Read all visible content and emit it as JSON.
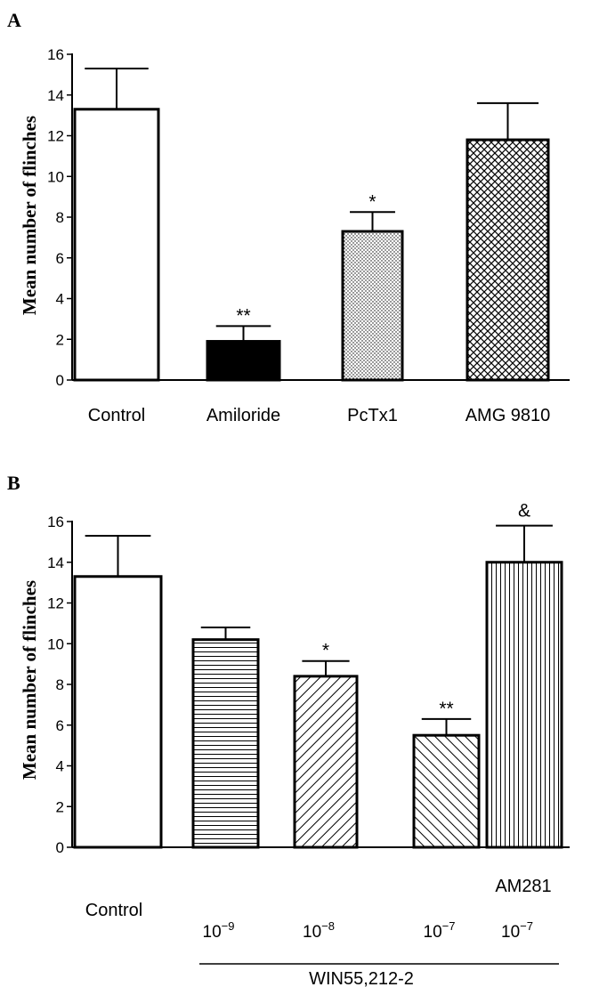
{
  "chart_data": [
    {
      "type": "bar",
      "panel": "A",
      "ylabel": "Mean number of flinches",
      "ylim": [
        0,
        16
      ],
      "yticks": [
        "0",
        "2",
        "4",
        "6",
        "8",
        "10",
        "12",
        "14",
        "16"
      ],
      "categories": [
        "Control",
        "Amiloride",
        "PcTx1",
        "AMG 9810"
      ],
      "values": [
        13.3,
        1.9,
        7.3,
        11.8
      ],
      "errors": [
        2.0,
        0.75,
        0.95,
        1.8
      ],
      "significance": [
        "",
        "**",
        "*",
        ""
      ],
      "fills": [
        "white",
        "solid",
        "dots",
        "crosshatch"
      ]
    },
    {
      "type": "bar",
      "panel": "B",
      "ylabel": "Mean number of flinches",
      "ylim": [
        0,
        16
      ],
      "yticks": [
        "0",
        "2",
        "4",
        "6",
        "8",
        "10",
        "12",
        "14",
        "16"
      ],
      "categories": [
        "Control",
        "WIN55,212-2 10-9",
        "WIN55,212-2 10-8",
        "WIN55,212-2 10-7",
        "AM281 10-7"
      ],
      "values": [
        13.3,
        10.2,
        8.4,
        5.5,
        14.0
      ],
      "errors": [
        2.0,
        0.6,
        0.75,
        0.8,
        1.8
      ],
      "significance": [
        "",
        "",
        "*",
        "**",
        "&"
      ],
      "fills": [
        "white",
        "hlines",
        "diag",
        "antidiag",
        "vlines"
      ],
      "labels": {
        "control": "Control",
        "am281": "AM281",
        "group": "WIN55,212-2",
        "dose_base": "10",
        "dose_exps": [
          "−9",
          "−8",
          "−7",
          "−7"
        ]
      }
    }
  ]
}
